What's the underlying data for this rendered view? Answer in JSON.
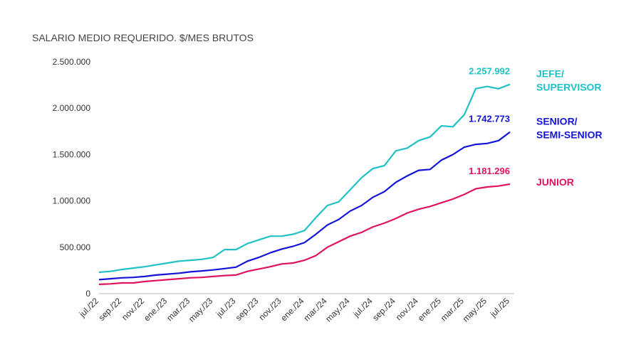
{
  "chart_data": {
    "type": "line",
    "title": "SALARIO MEDIO REQUERIDO. $/MES BRUTOS",
    "categories": [
      "jul./22",
      null,
      "sep./22",
      null,
      "nov./22",
      null,
      "ene./23",
      null,
      "mar./23",
      null,
      "may./23",
      null,
      "jul./23",
      null,
      "sep./23",
      null,
      "nov./23",
      null,
      "ene./24",
      null,
      "mar./24",
      null,
      "may./24",
      null,
      "jul./24",
      null,
      "sep./24",
      null,
      "nov./24",
      null,
      "ene./25",
      null,
      "mar./25",
      null,
      "may./25",
      null,
      "jul./25"
    ],
    "ylim": [
      0,
      2500000
    ],
    "yticks": [
      0,
      {
        "value": 500000,
        "label": "500.000"
      },
      {
        "value": 1000000,
        "label": "1.000.000"
      },
      {
        "value": 1500000,
        "label": "1.500.000"
      },
      {
        "value": 2000000,
        "label": "2.000.000"
      },
      {
        "value": 2500000,
        "label": "2.500.000"
      }
    ],
    "grid": false,
    "series": [
      {
        "name": "JEFE/ SUPERVISOR",
        "color": "#1fc1c6",
        "values": [
          230000,
          240000,
          260000,
          275000,
          290000,
          310000,
          330000,
          350000,
          360000,
          370000,
          390000,
          475000,
          475000,
          540000,
          580000,
          620000,
          620000,
          640000,
          680000,
          820000,
          950000,
          990000,
          1120000,
          1250000,
          1350000,
          1380000,
          1540000,
          1570000,
          1650000,
          1690000,
          1810000,
          1800000,
          1930000,
          2210000,
          2235000,
          2210000,
          2257992
        ],
        "value_labels": [
          null,
          null,
          null,
          null,
          null,
          null,
          null,
          null,
          null,
          null,
          null,
          null,
          null,
          null,
          null,
          null,
          null,
          null,
          null,
          null,
          null,
          null,
          null,
          null,
          null,
          null,
          null,
          null,
          null,
          null,
          null,
          null,
          null,
          null,
          null,
          null,
          "2.257.992"
        ]
      },
      {
        "name": "SENIOR/ SEMI-SENIOR",
        "color": "#1414d8",
        "values": [
          150000,
          160000,
          170000,
          175000,
          185000,
          200000,
          210000,
          220000,
          235000,
          245000,
          255000,
          270000,
          285000,
          350000,
          390000,
          440000,
          480000,
          510000,
          550000,
          640000,
          740000,
          800000,
          890000,
          950000,
          1040000,
          1100000,
          1200000,
          1270000,
          1330000,
          1340000,
          1440000,
          1500000,
          1580000,
          1610000,
          1620000,
          1650000,
          1742773
        ],
        "value_labels": [
          null,
          null,
          null,
          null,
          null,
          null,
          null,
          null,
          null,
          null,
          null,
          null,
          null,
          null,
          null,
          null,
          null,
          null,
          null,
          null,
          null,
          null,
          null,
          null,
          null,
          null,
          null,
          null,
          null,
          null,
          null,
          null,
          null,
          null,
          null,
          null,
          "1.742.773"
        ]
      },
      {
        "name": "JUNIOR",
        "color": "#e0135f",
        "values": [
          100000,
          105000,
          115000,
          115000,
          130000,
          140000,
          150000,
          160000,
          170000,
          175000,
          185000,
          195000,
          200000,
          240000,
          265000,
          290000,
          320000,
          330000,
          360000,
          410000,
          500000,
          560000,
          620000,
          660000,
          720000,
          760000,
          810000,
          870000,
          910000,
          940000,
          980000,
          1020000,
          1070000,
          1130000,
          1150000,
          1160000,
          1181296
        ],
        "value_labels": [
          null,
          null,
          null,
          null,
          null,
          null,
          null,
          null,
          null,
          null,
          null,
          null,
          null,
          null,
          null,
          null,
          null,
          null,
          null,
          null,
          null,
          null,
          null,
          null,
          null,
          null,
          null,
          null,
          null,
          null,
          null,
          null,
          null,
          null,
          null,
          null,
          "1.181.296"
        ]
      }
    ]
  }
}
